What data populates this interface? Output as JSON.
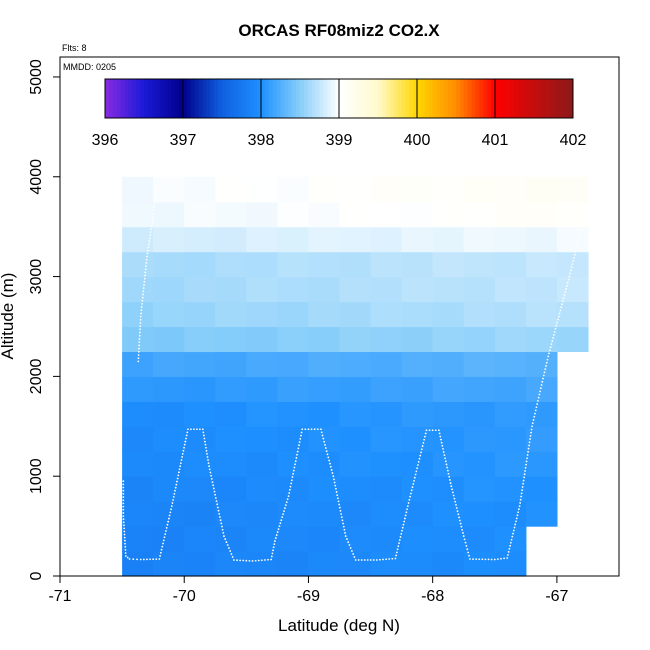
{
  "chart_data": {
    "type": "heatmap",
    "title": "ORCAS RF08miz2 CO2.X",
    "xlabel": "Latitude (deg N)",
    "ylabel": "Altitude (m)",
    "xlim": [
      -71,
      -66.5
    ],
    "ylim": [
      0,
      5200
    ],
    "x_ticks": [
      -71,
      -70,
      -69,
      -68,
      -67
    ],
    "x_tick_labels": [
      "-71",
      "-70",
      "-69",
      "-68",
      "-67"
    ],
    "y_ticks": [
      0,
      1000,
      2000,
      3000,
      4000,
      5000
    ],
    "y_tick_labels": [
      "0",
      "1000",
      "2000",
      "3000",
      "4000",
      "5000"
    ],
    "annotations": {
      "flights": "Flts: 8",
      "date": "MMDD: 0205"
    },
    "colorbar": {
      "min": 396,
      "max": 402,
      "ticks": [
        396,
        397,
        398,
        399,
        400,
        401,
        402
      ],
      "tick_labels": [
        "396",
        "397",
        "398",
        "399",
        "400",
        "401",
        "402"
      ],
      "stops": [
        {
          "v": 396.0,
          "c": "#8a2be2"
        },
        {
          "v": 396.5,
          "c": "#1a1ad8"
        },
        {
          "v": 397.0,
          "c": "#00008b"
        },
        {
          "v": 397.5,
          "c": "#1060e0"
        },
        {
          "v": 398.0,
          "c": "#1e90ff"
        },
        {
          "v": 398.5,
          "c": "#87cefa"
        },
        {
          "v": 399.0,
          "c": "#ffffff"
        },
        {
          "v": 399.5,
          "c": "#fffacd"
        },
        {
          "v": 400.0,
          "c": "#ffd700"
        },
        {
          "v": 400.5,
          "c": "#ff8c00"
        },
        {
          "v": 401.0,
          "c": "#ff0000"
        },
        {
          "v": 402.0,
          "c": "#8b1a1a"
        }
      ]
    },
    "bins": {
      "lat_edges": [
        -70.5,
        -70.25,
        -70.0,
        -69.75,
        -69.5,
        -69.25,
        -69.0,
        -68.75,
        -68.5,
        -68.25,
        -68.0,
        -67.75,
        -67.5,
        -67.25,
        -67.0,
        -66.75
      ],
      "alt_band_edges": [
        0,
        250,
        500,
        750,
        1000,
        1250,
        1500,
        1750,
        2000,
        2250,
        2500,
        2750,
        3000,
        3250,
        3500,
        3750,
        4000
      ],
      "band_lat_max": [
        -67.25,
        -67.25,
        -67.0,
        -67.0,
        -67.0,
        -67.0,
        -67.0,
        -67.0,
        -67.0,
        -66.75,
        -66.75,
        -66.75,
        -66.75,
        -66.75,
        -66.75,
        -66.75
      ],
      "band_values": [
        397.85,
        397.86,
        397.87,
        397.89,
        397.92,
        397.94,
        397.96,
        398.05,
        398.15,
        398.45,
        398.55,
        398.6,
        398.62,
        398.8,
        398.92,
        398.95
      ],
      "gradient_per_deg_lat": 0.04
    },
    "flight_track": [
      [
        -70.49,
        950
      ],
      [
        -70.49,
        600
      ],
      [
        -70.47,
        200
      ],
      [
        -70.44,
        170
      ],
      [
        -70.35,
        165
      ],
      [
        -70.2,
        170
      ],
      [
        -70.1,
        700
      ],
      [
        -69.97,
        1470
      ],
      [
        -69.85,
        1470
      ],
      [
        -69.8,
        1100
      ],
      [
        -69.68,
        400
      ],
      [
        -69.6,
        160
      ],
      [
        -69.45,
        150
      ],
      [
        -69.3,
        165
      ],
      [
        -69.27,
        350
      ],
      [
        -69.16,
        800
      ],
      [
        -69.05,
        1470
      ],
      [
        -68.9,
        1470
      ],
      [
        -68.8,
        1000
      ],
      [
        -68.7,
        400
      ],
      [
        -68.62,
        160
      ],
      [
        -68.45,
        160
      ],
      [
        -68.3,
        175
      ],
      [
        -68.2,
        700
      ],
      [
        -68.05,
        1460
      ],
      [
        -67.95,
        1460
      ],
      [
        -67.85,
        900
      ],
      [
        -67.75,
        400
      ],
      [
        -67.7,
        170
      ],
      [
        -67.5,
        165
      ],
      [
        -67.4,
        180
      ],
      [
        -67.3,
        700
      ],
      [
        -67.2,
        1500
      ],
      [
        -67.07,
        2200
      ],
      [
        -66.9,
        3000
      ],
      [
        -66.8,
        3500
      ],
      [
        -66.75,
        3720
      ]
    ],
    "flight_track_2": [
      [
        -70.37,
        2150
      ],
      [
        -70.35,
        2600
      ],
      [
        -70.3,
        3200
      ],
      [
        -70.25,
        3600
      ],
      [
        -70.22,
        3950
      ]
    ]
  }
}
